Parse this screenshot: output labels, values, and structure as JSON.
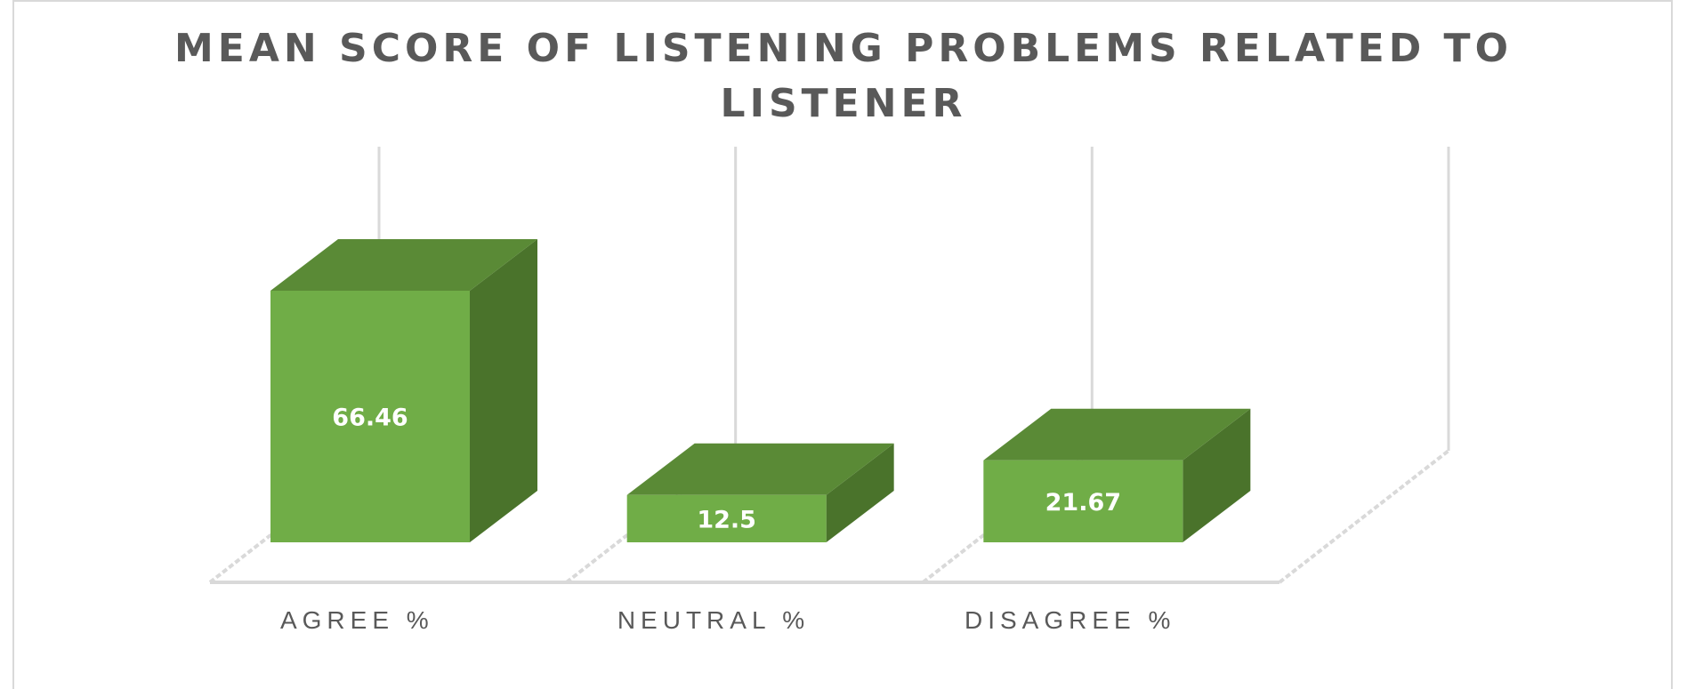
{
  "chart_data": {
    "type": "bar",
    "title_lines": [
      "MEAN SCORE OF LISTENING PROBLEMS RELATED TO",
      "LISTENER"
    ],
    "categories": [
      "AGREE %",
      "NEUTRAL %",
      "DISAGREE %"
    ],
    "values": [
      66.46,
      12.5,
      21.67
    ],
    "data_labels": [
      "66.46",
      "12.5",
      "21.67"
    ],
    "bar_style": "3d",
    "grid": false,
    "legend": "none",
    "colors": {
      "front": "#70AD47",
      "top": "#5A8A36",
      "side": "#4A732B",
      "text": "#595959"
    }
  }
}
